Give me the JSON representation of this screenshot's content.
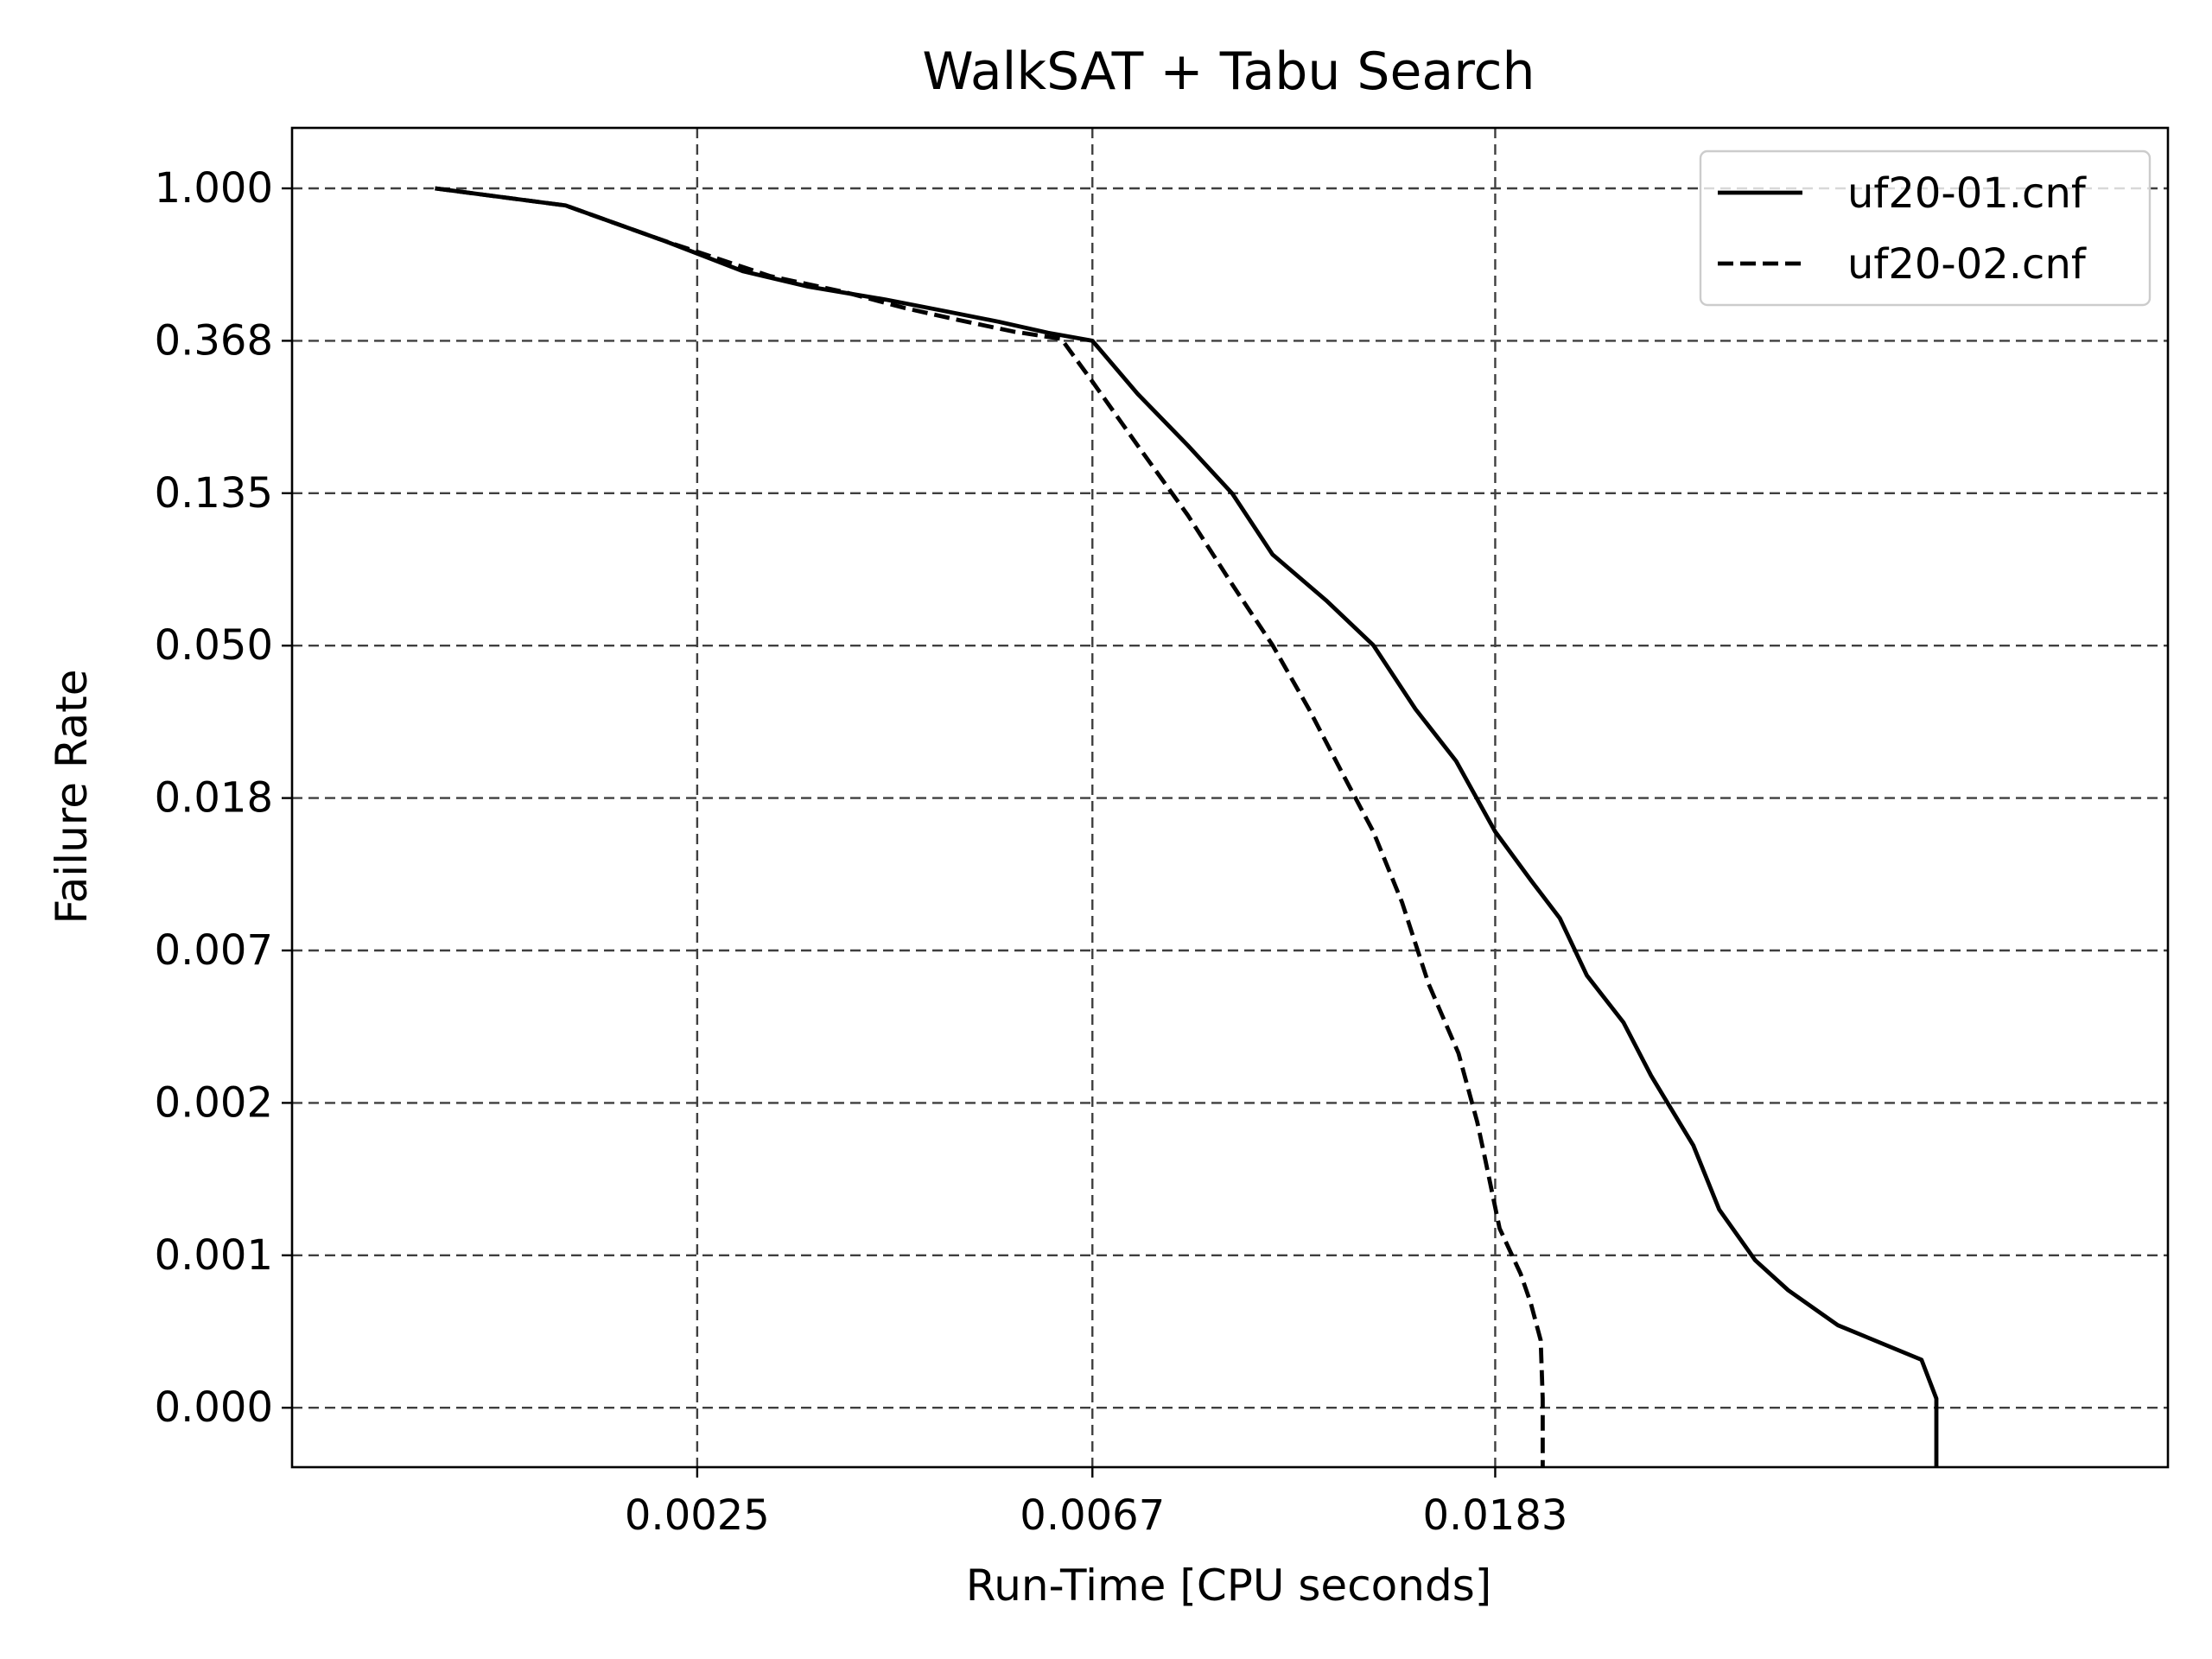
{
  "chart_data": {
    "type": "line",
    "title": "WalkSAT + Tabu Search",
    "xlabel": "Run-Time [CPU seconds]",
    "ylabel": "Failure Rate",
    "x_scale": "log",
    "y_scale": "log-log transformed (ln(-ln(y)))",
    "xlim": [
      0.00091,
      0.098
    ],
    "x_ticks": [
      0.0025,
      0.0067,
      0.0183
    ],
    "x_tick_labels": [
      "0.0025",
      "0.0067",
      "0.0183"
    ],
    "y_tick_labels": [
      "1.000",
      "0.368",
      "0.135",
      "0.050",
      "0.018",
      "0.007",
      "0.002",
      "0.001",
      "0.000"
    ],
    "grid": true,
    "legend_position": "top-right",
    "series": [
      {
        "name": "uf20-01.cnf",
        "color": "#000000",
        "dash": "solid",
        "points": [
          [
            0.0013,
            1.0
          ],
          [
            0.0018,
            0.998
          ],
          [
            0.0023,
            0.99
          ],
          [
            0.0028,
            0.96
          ],
          [
            0.0033,
            0.92
          ],
          [
            0.004,
            0.86
          ],
          [
            0.0046,
            0.78
          ],
          [
            0.0053,
            0.66
          ],
          [
            0.006,
            0.5
          ],
          [
            0.0067,
            0.368
          ],
          [
            0.0075,
            0.28
          ],
          [
            0.0085,
            0.2
          ],
          [
            0.0095,
            0.135
          ],
          [
            0.0105,
            0.095
          ],
          [
            0.012,
            0.07
          ],
          [
            0.0135,
            0.05
          ],
          [
            0.015,
            0.034
          ],
          [
            0.0166,
            0.024
          ],
          [
            0.0183,
            0.015
          ],
          [
            0.02,
            0.011
          ],
          [
            0.0215,
            0.0085
          ],
          [
            0.023,
            0.0058
          ],
          [
            0.0252,
            0.0043
          ],
          [
            0.027,
            0.003
          ],
          [
            0.03,
            0.0019
          ],
          [
            0.032,
            0.00125
          ],
          [
            0.035,
            0.00085
          ],
          [
            0.038,
            0.00055
          ],
          [
            0.043,
            0.00032
          ],
          [
            0.053,
            0.00018
          ],
          [
            0.055,
            9e-05
          ]
        ]
      },
      {
        "name": "uf20-02.cnf",
        "color": "#000000",
        "dash": "dashed",
        "points": [
          [
            0.0013,
            1.0
          ],
          [
            0.0018,
            0.998
          ],
          [
            0.0023,
            0.99
          ],
          [
            0.003,
            0.95
          ],
          [
            0.0036,
            0.9
          ],
          [
            0.0042,
            0.8
          ],
          [
            0.0048,
            0.68
          ],
          [
            0.0055,
            0.52
          ],
          [
            0.0062,
            0.4
          ],
          [
            0.0067,
            0.3
          ],
          [
            0.0075,
            0.2
          ],
          [
            0.0085,
            0.12
          ],
          [
            0.0095,
            0.078
          ],
          [
            0.0105,
            0.05
          ],
          [
            0.0115,
            0.034
          ],
          [
            0.0125,
            0.022
          ],
          [
            0.0135,
            0.015
          ],
          [
            0.0145,
            0.0095
          ],
          [
            0.0155,
            0.0055
          ],
          [
            0.0167,
            0.0035
          ],
          [
            0.0175,
            0.0022
          ],
          [
            0.0178,
            0.0018
          ],
          [
            0.0185,
            0.0011
          ],
          [
            0.0195,
            0.0007
          ],
          [
            0.02,
            0.00045
          ],
          [
            0.0205,
            0.00025
          ],
          [
            0.0206,
            9e-05
          ]
        ]
      }
    ]
  }
}
